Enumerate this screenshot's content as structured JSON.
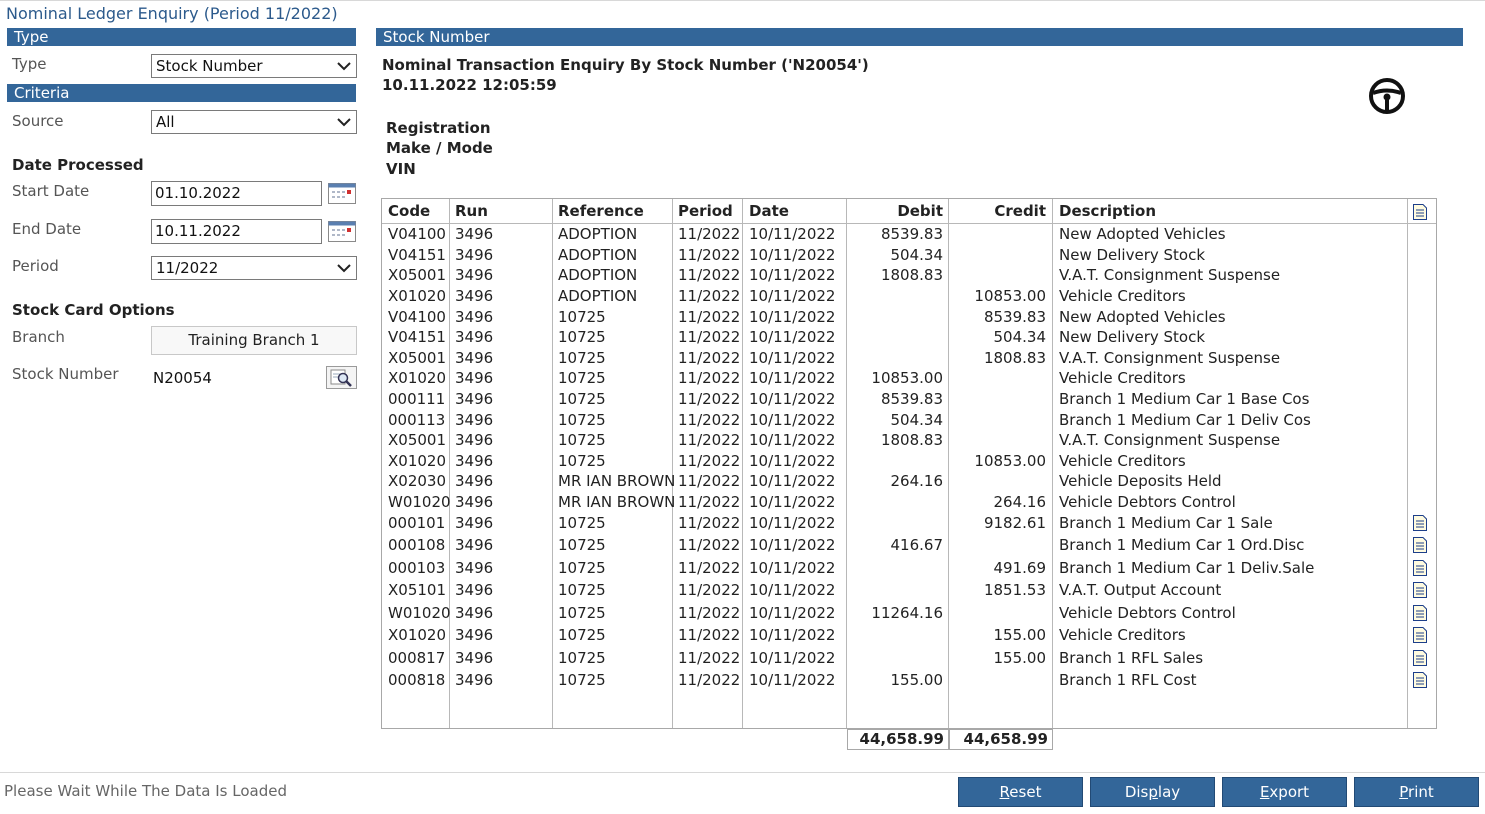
{
  "window": {
    "title": "Nominal Ledger Enquiry (Period 11/2022)"
  },
  "left_panel": {
    "type_section": "Type",
    "type_label": "Type",
    "type_value": "Stock Number",
    "criteria_section": "Criteria",
    "source_label": "Source",
    "source_value": "All",
    "date_processed_heading": "Date Processed",
    "start_date_label": "Start Date",
    "start_date_value": "01.10.2022",
    "end_date_label": "End Date",
    "end_date_value": "10.11.2022",
    "period_label": "Period",
    "period_value": "11/2022",
    "stock_card_heading": "Stock Card Options",
    "branch_label": "Branch",
    "branch_value": "Training Branch 1",
    "stock_number_label": "Stock Number",
    "stock_number_value": "N20054"
  },
  "right_panel": {
    "section_title": "Stock Number",
    "enquiry_title": "Nominal Transaction Enquiry By Stock Number ('N20054')",
    "enquiry_datetime": "10.11.2022 12:05:59",
    "registration_label": "Registration",
    "make_label": "Make / Mode",
    "vin_label": "VIN",
    "icons": {
      "vehicle": "steering-wheel-icon",
      "note": "note-document-icon"
    }
  },
  "table": {
    "headers": {
      "code": "Code",
      "run": "Run",
      "reference": "Reference",
      "period": "Period",
      "date": "Date",
      "debit": "Debit",
      "credit": "Credit",
      "description": "Description"
    },
    "rows": [
      {
        "code": "V04100",
        "run": "3496",
        "reference": "ADOPTION",
        "period": "11/2022",
        "date": "10/11/2022",
        "debit": "8539.83",
        "credit": "",
        "description": "New Adopted Vehicles",
        "note": false
      },
      {
        "code": "V04151",
        "run": "3496",
        "reference": "ADOPTION",
        "period": "11/2022",
        "date": "10/11/2022",
        "debit": "504.34",
        "credit": "",
        "description": "New Delivery Stock",
        "note": false
      },
      {
        "code": "X05001",
        "run": "3496",
        "reference": "ADOPTION",
        "period": "11/2022",
        "date": "10/11/2022",
        "debit": "1808.83",
        "credit": "",
        "description": "V.A.T. Consignment Suspense",
        "note": false
      },
      {
        "code": "X01020",
        "run": "3496",
        "reference": "ADOPTION",
        "period": "11/2022",
        "date": "10/11/2022",
        "debit": "",
        "credit": "10853.00",
        "description": "Vehicle Creditors",
        "note": false
      },
      {
        "code": "V04100",
        "run": "3496",
        "reference": "10725",
        "period": "11/2022",
        "date": "10/11/2022",
        "debit": "",
        "credit": "8539.83",
        "description": "New Adopted Vehicles",
        "note": false
      },
      {
        "code": "V04151",
        "run": "3496",
        "reference": "10725",
        "period": "11/2022",
        "date": "10/11/2022",
        "debit": "",
        "credit": "504.34",
        "description": "New Delivery Stock",
        "note": false
      },
      {
        "code": "X05001",
        "run": "3496",
        "reference": "10725",
        "period": "11/2022",
        "date": "10/11/2022",
        "debit": "",
        "credit": "1808.83",
        "description": "V.A.T. Consignment Suspense",
        "note": false
      },
      {
        "code": "X01020",
        "run": "3496",
        "reference": "10725",
        "period": "11/2022",
        "date": "10/11/2022",
        "debit": "10853.00",
        "credit": "",
        "description": "Vehicle Creditors",
        "note": false
      },
      {
        "code": "000111",
        "run": "3496",
        "reference": "10725",
        "period": "11/2022",
        "date": "10/11/2022",
        "debit": "8539.83",
        "credit": "",
        "description": "Branch 1 Medium Car 1 Base Cos",
        "note": false
      },
      {
        "code": "000113",
        "run": "3496",
        "reference": "10725",
        "period": "11/2022",
        "date": "10/11/2022",
        "debit": "504.34",
        "credit": "",
        "description": "Branch 1 Medium Car 1 Deliv Cos",
        "note": false
      },
      {
        "code": "X05001",
        "run": "3496",
        "reference": "10725",
        "period": "11/2022",
        "date": "10/11/2022",
        "debit": "1808.83",
        "credit": "",
        "description": "V.A.T. Consignment Suspense",
        "note": false
      },
      {
        "code": "X01020",
        "run": "3496",
        "reference": "10725",
        "period": "11/2022",
        "date": "10/11/2022",
        "debit": "",
        "credit": "10853.00",
        "description": "Vehicle Creditors",
        "note": false
      },
      {
        "code": "X02030",
        "run": "3496",
        "reference": "MR IAN BROWN",
        "period": "11/2022",
        "date": "10/11/2022",
        "debit": "264.16",
        "credit": "",
        "description": "Vehicle Deposits Held",
        "note": false
      },
      {
        "code": "W01020",
        "run": "3496",
        "reference": "MR IAN BROWN",
        "period": "11/2022",
        "date": "10/11/2022",
        "debit": "",
        "credit": "264.16",
        "description": "Vehicle Debtors Control",
        "note": false
      },
      {
        "code": "000101",
        "run": "3496",
        "reference": "10725",
        "period": "11/2022",
        "date": "10/11/2022",
        "debit": "",
        "credit": "9182.61",
        "description": "Branch 1 Medium Car 1 Sale",
        "note": true
      },
      {
        "code": "000108",
        "run": "3496",
        "reference": "10725",
        "period": "11/2022",
        "date": "10/11/2022",
        "debit": "416.67",
        "credit": "",
        "description": "Branch 1 Medium Car 1 Ord.Disc",
        "note": true
      },
      {
        "code": "000103",
        "run": "3496",
        "reference": "10725",
        "period": "11/2022",
        "date": "10/11/2022",
        "debit": "",
        "credit": "491.69",
        "description": "Branch 1 Medium Car 1 Deliv.Sale",
        "note": true
      },
      {
        "code": "X05101",
        "run": "3496",
        "reference": "10725",
        "period": "11/2022",
        "date": "10/11/2022",
        "debit": "",
        "credit": "1851.53",
        "description": "V.A.T. Output Account",
        "note": true
      },
      {
        "code": "W01020",
        "run": "3496",
        "reference": "10725",
        "period": "11/2022",
        "date": "10/11/2022",
        "debit": "11264.16",
        "credit": "",
        "description": "Vehicle Debtors Control",
        "note": true
      },
      {
        "code": "X01020",
        "run": "3496",
        "reference": "10725",
        "period": "11/2022",
        "date": "10/11/2022",
        "debit": "",
        "credit": "155.00",
        "description": "Vehicle Creditors",
        "note": true
      },
      {
        "code": "000817",
        "run": "3496",
        "reference": "10725",
        "period": "11/2022",
        "date": "10/11/2022",
        "debit": "",
        "credit": "155.00",
        "description": "Branch 1 RFL Sales",
        "note": true
      },
      {
        "code": "000818",
        "run": "3496",
        "reference": "10725",
        "period": "11/2022",
        "date": "10/11/2022",
        "debit": "155.00",
        "credit": "",
        "description": "Branch 1 RFL Cost",
        "note": true
      }
    ],
    "totals": {
      "debit": "44,658.99",
      "credit": "44,658.99"
    }
  },
  "footer": {
    "status": "Please Wait While The Data Is Loaded",
    "buttons": [
      {
        "label": "Reset",
        "mnemonic": "R",
        "rest": "eset"
      },
      {
        "label": "Display",
        "mnemonic": "p",
        "pre": "Dis",
        "rest": "lay"
      },
      {
        "label": "Export",
        "mnemonic": "E",
        "rest": "xport"
      },
      {
        "label": "Print",
        "mnemonic": "P",
        "rest": "rint"
      }
    ]
  }
}
